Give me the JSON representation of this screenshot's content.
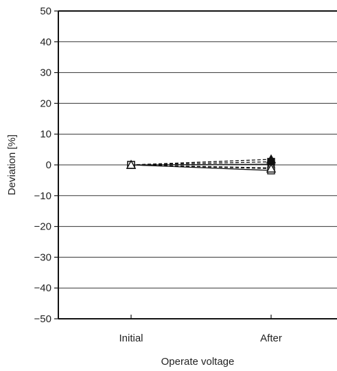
{
  "chart_data": {
    "type": "line",
    "categories": [
      "Initial",
      "After"
    ],
    "xlabel": "Operate voltage",
    "ylabel": "Deviation  [%]",
    "ylim": [
      -50,
      50
    ],
    "yticks": [
      50,
      40,
      30,
      20,
      10,
      0,
      -10,
      -20,
      -30,
      -40,
      -50
    ],
    "ytick_labels": [
      "50",
      "40",
      "30",
      "20",
      "10",
      "0",
      "−10",
      "−20",
      "−30",
      "−40",
      "−50"
    ],
    "grid": "horizontal",
    "series": [
      {
        "marker": "filled-triangle",
        "dash": true,
        "values": [
          0,
          1.8
        ]
      },
      {
        "marker": "filled-square",
        "dash": true,
        "values": [
          0,
          1.0
        ]
      },
      {
        "marker": "filled-circle",
        "dash": false,
        "values": [
          0,
          0.2
        ]
      },
      {
        "marker": "open-circle",
        "dash": true,
        "values": [
          0,
          -1.0
        ]
      },
      {
        "marker": "open-square",
        "dash": false,
        "values": [
          0,
          -1.8
        ]
      },
      {
        "marker": "open-triangle",
        "dash": true,
        "values": [
          0,
          -1.2
        ]
      }
    ]
  }
}
